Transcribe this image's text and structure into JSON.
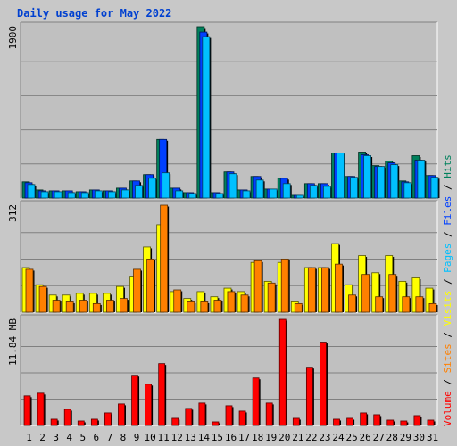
{
  "title": "Daily usage for May 2022",
  "chart_data": {
    "type": "bar",
    "categories": [
      "1",
      "2",
      "3",
      "4",
      "5",
      "6",
      "7",
      "8",
      "9",
      "10",
      "11",
      "12",
      "13",
      "14",
      "15",
      "16",
      "17",
      "18",
      "19",
      "20",
      "21",
      "22",
      "23",
      "24",
      "25",
      "26",
      "27",
      "28",
      "29",
      "30",
      "31"
    ],
    "weekend_categories": [
      "1",
      "7",
      "8",
      "14",
      "15",
      "21",
      "22",
      "28",
      "29"
    ],
    "panels": [
      {
        "name": "hits-files-pages",
        "ytick_label": "1900",
        "ymax": 1900,
        "series": [
          {
            "name": "Hits",
            "color": "#00805c",
            "values": [
              180,
              90,
              80,
              80,
              70,
              90,
              80,
              110,
              190,
              260,
              650,
              110,
              60,
              1900,
              60,
              290,
              90,
              240,
              100,
              220,
              30,
              160,
              160,
              500,
              240,
              510,
              360,
              410,
              190,
              470,
              250
            ]
          },
          {
            "name": "Files",
            "color": "#0040ff",
            "values": [
              170,
              80,
              80,
              80,
              70,
              90,
              80,
              110,
              190,
              260,
              650,
              110,
              60,
              1840,
              60,
              290,
              90,
              240,
              100,
              220,
              30,
              160,
              160,
              500,
              240,
              480,
              350,
              390,
              180,
              420,
              250
            ]
          },
          {
            "name": "Pages",
            "color": "#00c0ff",
            "values": [
              150,
              70,
              70,
              60,
              60,
              80,
              70,
              90,
              140,
              220,
              280,
              80,
              50,
              1790,
              50,
              270,
              80,
              200,
              100,
              160,
              30,
              140,
              130,
              500,
              230,
              470,
              350,
              370,
              170,
              420,
              230
            ]
          }
        ]
      },
      {
        "name": "visits-sites",
        "ytick_label": "312",
        "ymax": 312,
        "series": [
          {
            "name": "Visits",
            "color": "#ffff00",
            "values": [
              130,
              80,
              50,
              50,
              55,
              55,
              55,
              75,
              105,
              190,
              255,
              60,
              40,
              60,
              45,
              70,
              60,
              145,
              90,
              145,
              30,
              130,
              130,
              200,
              80,
              165,
              115,
              165,
              90,
              100,
              70
            ]
          },
          {
            "name": "Sites",
            "color": "#ff8000",
            "values": [
              125,
              75,
              35,
              30,
              35,
              25,
              35,
              40,
              125,
              155,
              312,
              65,
              30,
              30,
              35,
              60,
              50,
              150,
              85,
              155,
              25,
              130,
              130,
              140,
              50,
              110,
              45,
              110,
              45,
              45,
              25
            ]
          }
        ]
      },
      {
        "name": "volume",
        "ytick_label": "11.84 MB",
        "ymax": 11.84,
        "series": [
          {
            "name": "Volume",
            "color": "#ff0000",
            "values": [
              3.3,
              3.6,
              0.7,
              1.8,
              0.5,
              0.7,
              1.4,
              2.4,
              5.6,
              4.6,
              6.9,
              0.8,
              1.9,
              2.5,
              0.4,
              2.2,
              1.6,
              5.3,
              2.5,
              11.84,
              0.8,
              6.5,
              9.3,
              0.7,
              0.8,
              1.4,
              1.2,
              0.6,
              0.5,
              1.1,
              0.6
            ]
          }
        ]
      }
    ],
    "right_labels": [
      {
        "text": "Hits",
        "color": "#00805c"
      },
      {
        "text": "Files",
        "color": "#0040ff"
      },
      {
        "text": "Pages",
        "color": "#00c0ff"
      },
      {
        "text": "Visits",
        "color": "#ffff00"
      },
      {
        "text": "Sites",
        "color": "#ff8000"
      },
      {
        "text": "Volume",
        "color": "#ff0000"
      }
    ],
    "separator": " / ",
    "colors": {
      "weekend_label": "#00805c",
      "weekday_label": "#000000",
      "gridline": "#808080",
      "plot_bg": "#c0c0c0",
      "title": "#0040d0"
    }
  }
}
